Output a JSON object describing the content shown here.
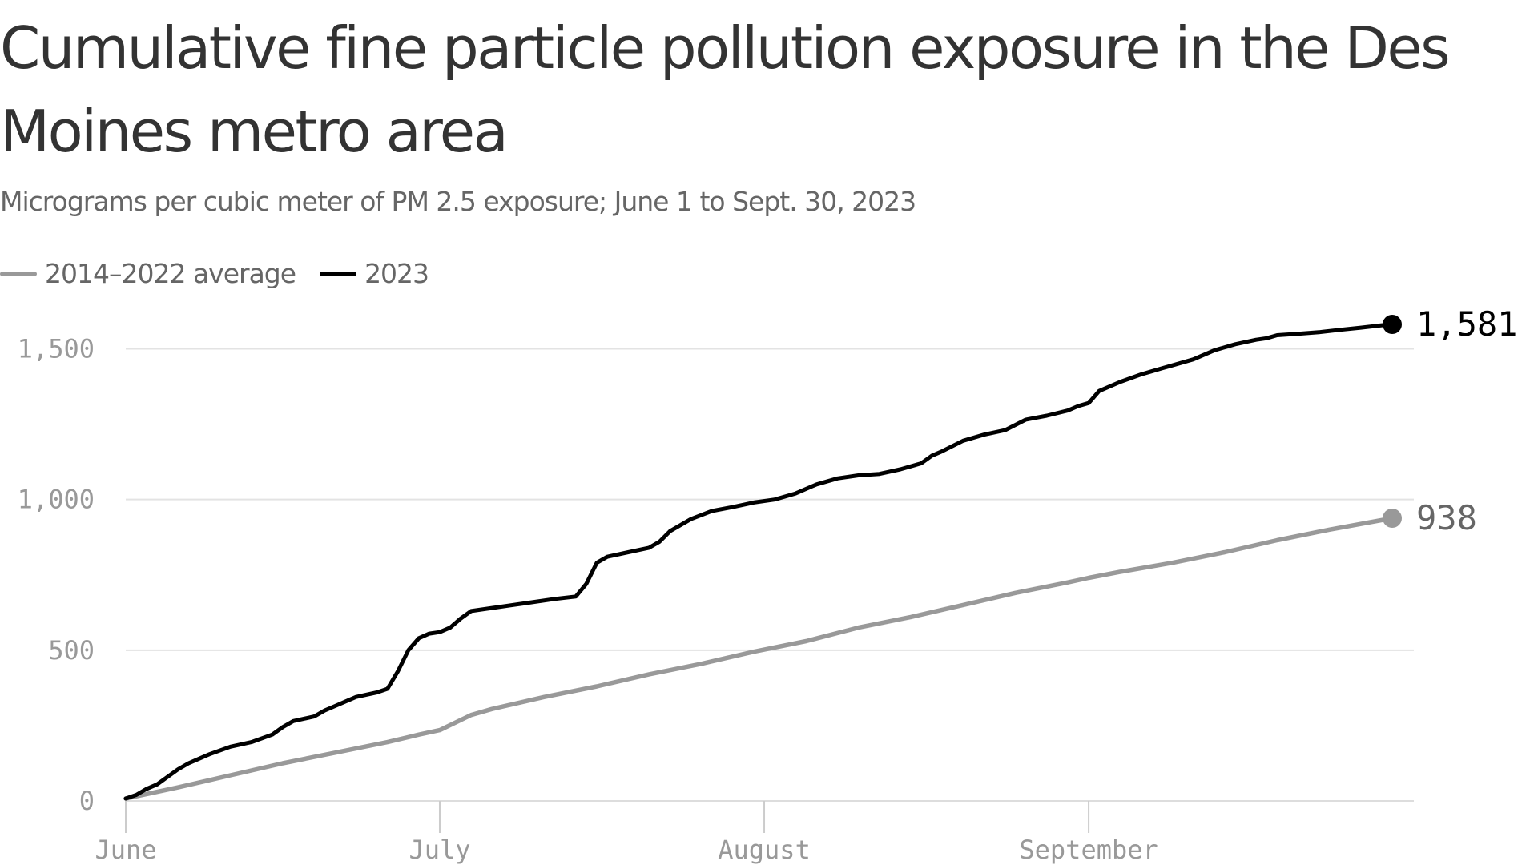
{
  "chart_data": {
    "type": "line",
    "title": "Cumulative fine particle pollution exposure in the Des Moines metro area",
    "subtitle": "Micrograms per cubic meter of PM 2.5 exposure; June 1 to Sept. 30, 2023",
    "xlabel": "",
    "ylabel": "",
    "xlim": [
      0,
      121
    ],
    "ylim": [
      0,
      1581
    ],
    "grid": true,
    "legend_position": "top-left",
    "y_ticks": [
      {
        "value": 0,
        "label": "0"
      },
      {
        "value": 500,
        "label": "500"
      },
      {
        "value": 1000,
        "label": "1,000"
      },
      {
        "value": 1500,
        "label": "1,500"
      }
    ],
    "x_ticks": [
      {
        "value": 0,
        "label": "June"
      },
      {
        "value": 30,
        "label": "July"
      },
      {
        "value": 61,
        "label": "August"
      },
      {
        "value": 92,
        "label": "September"
      }
    ],
    "series": [
      {
        "name": "2014–2022 average",
        "color": "#999999",
        "end_label": "938",
        "x": [
          0,
          5,
          10,
          15,
          20,
          25,
          28,
          30,
          33,
          35,
          40,
          45,
          50,
          55,
          60,
          65,
          70,
          75,
          80,
          85,
          90,
          92,
          95,
          100,
          105,
          110,
          115,
          121
        ],
        "y": [
          8,
          45,
          85,
          125,
          160,
          195,
          220,
          235,
          285,
          305,
          345,
          380,
          420,
          455,
          495,
          530,
          575,
          610,
          650,
          690,
          725,
          740,
          760,
          790,
          825,
          865,
          900,
          938
        ]
      },
      {
        "name": "2023",
        "color": "#000000",
        "end_label": "1,581",
        "x": [
          0,
          1,
          2,
          3,
          4,
          5,
          6,
          7,
          8,
          10,
          12,
          14,
          15,
          16,
          18,
          19,
          20,
          21,
          22,
          24,
          25,
          26,
          27,
          28,
          29,
          30,
          31,
          32,
          33,
          35,
          38,
          41,
          43,
          44,
          45,
          46,
          48,
          50,
          51,
          52,
          54,
          56,
          58,
          60,
          62,
          64,
          66,
          68,
          70,
          72,
          74,
          76,
          77,
          78,
          80,
          82,
          84,
          86,
          88,
          90,
          91,
          92,
          93,
          95,
          97,
          98,
          99,
          100,
          102,
          104,
          106,
          108,
          109,
          110,
          112,
          114,
          116,
          118,
          120,
          121
        ],
        "y": [
          8,
          20,
          40,
          55,
          80,
          105,
          125,
          140,
          155,
          180,
          195,
          220,
          245,
          265,
          280,
          300,
          315,
          330,
          345,
          360,
          372,
          430,
          500,
          540,
          555,
          560,
          575,
          605,
          630,
          640,
          655,
          670,
          678,
          720,
          790,
          810,
          825,
          840,
          860,
          895,
          935,
          962,
          975,
          990,
          1000,
          1020,
          1050,
          1070,
          1080,
          1085,
          1100,
          1120,
          1145,
          1160,
          1195,
          1215,
          1230,
          1265,
          1278,
          1295,
          1310,
          1320,
          1360,
          1390,
          1415,
          1425,
          1435,
          1445,
          1465,
          1495,
          1515,
          1530,
          1535,
          1545,
          1550,
          1555,
          1563,
          1570,
          1578,
          1581
        ]
      }
    ]
  }
}
